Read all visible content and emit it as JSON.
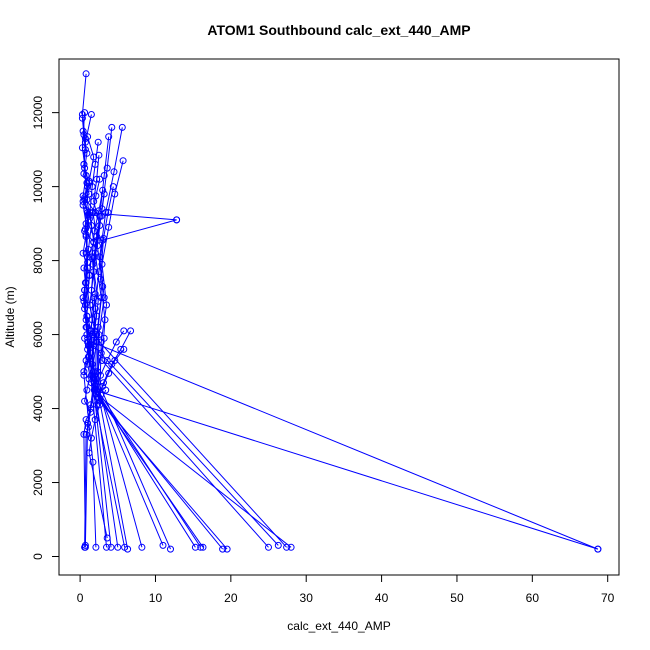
{
  "chart_data": {
    "type": "line",
    "title": "ATOM1 Southbound calc_ext_440_AMP",
    "xlabel": "calc_ext_440_AMP",
    "ylabel": "Altitude (m)",
    "xlim": [
      -2.8,
      71.5
    ],
    "ylim": [
      -500,
      13450
    ],
    "x_ticks": [
      0,
      10,
      20,
      30,
      40,
      50,
      60,
      70
    ],
    "y_ticks": [
      0,
      2000,
      4000,
      6000,
      8000,
      10000,
      12000
    ],
    "series_color": "#0000ff",
    "series": [
      {
        "x": [
          0.8,
          0.3,
          0.7,
          0.5,
          1.2,
          0.4,
          0.9,
          0.6,
          1.8,
          0.5,
          0.7,
          0.4,
          0.9,
          1.5,
          0.6,
          1.0,
          0.8,
          0.5,
          1.2,
          0.9,
          0.6,
          1.4,
          0.8,
          0.5,
          0.7
        ],
        "y": [
          13050,
          11950,
          11300,
          10350,
          9800,
          9600,
          9350,
          8800,
          8500,
          7800,
          7400,
          7000,
          6500,
          6100,
          5900,
          5600,
          5300,
          5000,
          4800,
          4500,
          4200,
          3900,
          3700,
          3300,
          250
        ]
      },
      {
        "x": [
          1.5,
          0.7,
          0.5,
          1.0,
          0.6,
          2.0,
          0.8,
          0.4,
          1.3,
          0.6,
          0.9,
          1.1,
          0.5,
          1.7,
          2.1
        ],
        "y": [
          11950,
          11200,
          10600,
          10000,
          9700,
          9300,
          8700,
          8200,
          7600,
          6700,
          6000,
          5400,
          4900,
          2550,
          250
        ]
      },
      {
        "x": [
          0.3,
          0.5,
          0.9,
          0.6,
          1.2,
          0.4,
          0.8,
          1.0,
          0.6,
          0.8,
          1.0,
          3.5
        ],
        "y": [
          11850,
          11400,
          10900,
          10500,
          10100,
          9500,
          9000,
          8100,
          7200,
          6400,
          5800,
          250
        ]
      },
      {
        "x": [
          0.6,
          0.3,
          0.8,
          0.4,
          1.1,
          0.7,
          1.0,
          0.5,
          0.9,
          4.1
        ],
        "y": [
          12000,
          11050,
          10300,
          9750,
          9250,
          8850,
          7950,
          6900,
          6200,
          250
        ]
      },
      {
        "x": [
          0.4,
          0.7,
          0.5,
          0.9,
          0.6,
          1.2,
          0.8,
          1.0,
          0.7,
          1.1,
          5.0
        ],
        "y": [
          11500,
          11000,
          10600,
          10100,
          9650,
          9200,
          8650,
          7800,
          6800,
          5700,
          250
        ]
      },
      {
        "x": [
          1.0,
          1.8,
          1.2,
          0.9,
          1.5,
          1.1,
          0.8,
          1.6,
          1.0,
          5.9
        ],
        "y": [
          11350,
          10800,
          10150,
          9650,
          8950,
          8300,
          7400,
          6400,
          5200,
          250
        ]
      },
      {
        "x": [
          2.4,
          2.0,
          1.6,
          1.3,
          1.8,
          1.2,
          0.9,
          1.4,
          6.3
        ],
        "y": [
          11200,
          10600,
          10000,
          9300,
          8500,
          7600,
          6500,
          5500,
          200
        ]
      },
      {
        "x": [
          2.5,
          2.2,
          1.8,
          2.6,
          1.9,
          1.5,
          2.0,
          1.6,
          8.2
        ],
        "y": [
          10850,
          10200,
          9600,
          8950,
          8100,
          7200,
          6100,
          5200,
          250
        ]
      },
      {
        "x": [
          2.6,
          2.1,
          1.7,
          2.3,
          1.8,
          1.3,
          2.2,
          1.5,
          11.0
        ],
        "y": [
          10200,
          9750,
          9300,
          8550,
          7700,
          6800,
          5800,
          4900,
          300
        ]
      },
      {
        "x": [
          3.0,
          2.5,
          1.9,
          1.6,
          2.0,
          1.4,
          1.8,
          12.0
        ],
        "y": [
          9900,
          9350,
          8800,
          8100,
          7100,
          6100,
          5000,
          200
        ]
      },
      {
        "x": [
          3.2,
          2.8,
          2.2,
          1.7,
          2.4,
          1.8,
          1.5,
          15.3
        ],
        "y": [
          9800,
          9200,
          8650,
          7900,
          6900,
          5900,
          4700,
          250
        ]
      },
      {
        "x": [
          3.8,
          3.2,
          2.6,
          2.0,
          2.8,
          2.2,
          2.0,
          16.0
        ],
        "y": [
          11350,
          10300,
          9200,
          8200,
          7000,
          6000,
          4600,
          250
        ]
      },
      {
        "x": [
          4.2,
          3.6,
          2.9,
          2.3,
          3.0,
          2.4,
          2.2,
          16.3
        ],
        "y": [
          11600,
          10500,
          9400,
          8400,
          7300,
          6200,
          4400,
          250
        ]
      },
      {
        "x": [
          5.6,
          4.5,
          3.4,
          2.6,
          3.2,
          2.5,
          2.4,
          18.9
        ],
        "y": [
          11600,
          10400,
          9300,
          8100,
          7000,
          6000,
          4300,
          200
        ]
      },
      {
        "x": [
          5.7,
          4.6,
          3.8,
          2.9,
          3.5,
          2.8,
          2.6,
          19.5
        ],
        "y": [
          10700,
          9800,
          8900,
          7900,
          6800,
          5800,
          4200,
          200
        ]
      },
      {
        "x": [
          4.4,
          3.7,
          3.1,
          2.7,
          3.3,
          2.9,
          25.0
        ],
        "y": [
          10000,
          9300,
          8600,
          7500,
          6400,
          5300,
          250
        ]
      },
      {
        "x": [
          12.8,
          3.0,
          2.5,
          2.0,
          1.8,
          26.3
        ],
        "y": [
          9100,
          8550,
          7700,
          6700,
          5700,
          300
        ]
      },
      {
        "x": [
          12.8,
          1.0,
          0.9,
          0.6,
          0.8,
          27.4
        ],
        "y": [
          9100,
          9300,
          8200,
          7200,
          6200,
          250
        ]
      },
      {
        "x": [
          5.8,
          4.8,
          3.6,
          2.7,
          2.1,
          28.0
        ],
        "y": [
          6100,
          5800,
          5300,
          4900,
          4400,
          250
        ]
      },
      {
        "x": [
          6.7,
          5.4,
          4.2,
          3.1,
          2.4,
          1.9,
          68.7
        ],
        "y": [
          6100,
          5600,
          5200,
          4700,
          4300,
          4500,
          200
        ]
      },
      {
        "x": [
          5.8,
          4.6,
          3.8,
          3.0,
          2.2,
          1.6,
          68.7
        ],
        "y": [
          5600,
          5300,
          4950,
          4600,
          4100,
          5800,
          200
        ]
      },
      {
        "x": [
          3.2,
          2.8,
          2.3,
          1.9,
          1.4,
          1.1,
          0.8,
          0.6
        ],
        "y": [
          5900,
          5500,
          5000,
          4500,
          4000,
          3500,
          3300,
          250
        ]
      },
      {
        "x": [
          1.8,
          2.2,
          1.6,
          1.2,
          1.9,
          1.4,
          1.0,
          0.7
        ],
        "y": [
          7000,
          6500,
          6000,
          5400,
          4800,
          4100,
          3600,
          300
        ]
      },
      {
        "x": [
          3.4,
          2.6,
          2.0,
          1.5,
          1.2,
          3.6
        ],
        "y": [
          4500,
          4100,
          3700,
          3200,
          2800,
          500
        ]
      }
    ]
  }
}
